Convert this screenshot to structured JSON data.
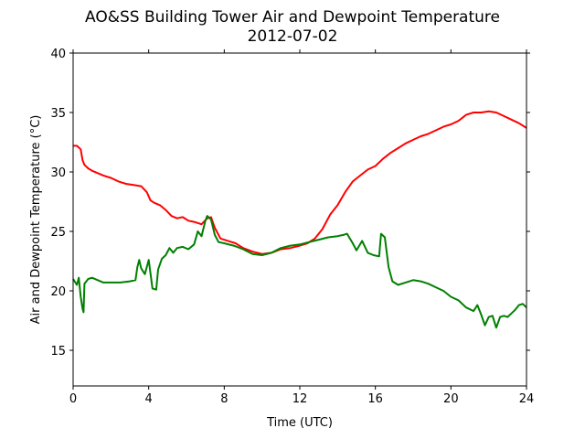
{
  "chart_data": {
    "type": "line",
    "title": "AO&SS Building Tower Air and Dewpoint Temperature",
    "subtitle": "2012-07-02",
    "xlabel": "Time (UTC)",
    "ylabel": "Air and Dewpoint Temperature (°C)",
    "xlim": [
      0,
      24
    ],
    "ylim": [
      12,
      40
    ],
    "xticks": [
      0,
      4,
      8,
      12,
      16,
      20,
      24
    ],
    "yticks": [
      15,
      20,
      25,
      30,
      35,
      40
    ],
    "grid": false,
    "series": [
      {
        "color": "#ff0000",
        "x": [
          0,
          0.2,
          0.4,
          0.5,
          0.6,
          0.8,
          1.0,
          1.3,
          1.6,
          2.0,
          2.4,
          2.8,
          3.2,
          3.6,
          3.9,
          4.1,
          4.3,
          4.6,
          4.9,
          5.2,
          5.5,
          5.8,
          6.1,
          6.4,
          6.8,
          7.1,
          7.3,
          7.5,
          7.8,
          8.2,
          8.6,
          9.0,
          9.5,
          10.0,
          10.5,
          11.0,
          11.5,
          12.0,
          12.4,
          12.8,
          13.2,
          13.6,
          14.0,
          14.4,
          14.8,
          15.2,
          15.6,
          16.0,
          16.4,
          16.8,
          17.2,
          17.6,
          18.0,
          18.4,
          18.8,
          19.2,
          19.6,
          20.0,
          20.4,
          20.8,
          21.2,
          21.6,
          22.0,
          22.4,
          22.8,
          23.2,
          23.6,
          24.0
        ],
        "y": [
          32.2,
          32.2,
          31.9,
          31.0,
          30.6,
          30.3,
          30.1,
          29.9,
          29.7,
          29.5,
          29.2,
          29.0,
          28.9,
          28.8,
          28.3,
          27.6,
          27.4,
          27.2,
          26.8,
          26.3,
          26.1,
          26.2,
          25.9,
          25.8,
          25.6,
          26.1,
          26.2,
          25.3,
          24.4,
          24.2,
          24.0,
          23.6,
          23.3,
          23.1,
          23.2,
          23.5,
          23.6,
          23.8,
          24.0,
          24.4,
          25.2,
          26.4,
          27.2,
          28.3,
          29.2,
          29.7,
          30.2,
          30.5,
          31.1,
          31.6,
          32.0,
          32.4,
          32.7,
          33.0,
          33.2,
          33.5,
          33.8,
          34.0,
          34.3,
          34.8,
          35.0,
          35.0,
          35.1,
          35.0,
          34.7,
          34.4,
          34.1,
          33.7
        ]
      },
      {
        "color": "#008000",
        "x": [
          0,
          0.2,
          0.3,
          0.4,
          0.5,
          0.55,
          0.6,
          0.8,
          1.0,
          1.3,
          1.6,
          2.0,
          2.5,
          3.0,
          3.3,
          3.4,
          3.5,
          3.6,
          3.8,
          4.0,
          4.2,
          4.4,
          4.5,
          4.7,
          4.9,
          5.1,
          5.3,
          5.5,
          5.8,
          6.1,
          6.4,
          6.6,
          6.8,
          7.0,
          7.1,
          7.3,
          7.5,
          7.7,
          8.0,
          8.5,
          9.0,
          9.5,
          10.0,
          10.5,
          11.0,
          11.5,
          12.0,
          12.5,
          13.0,
          13.5,
          14.0,
          14.3,
          14.5,
          14.8,
          15.0,
          15.3,
          15.6,
          15.9,
          16.2,
          16.3,
          16.5,
          16.7,
          16.9,
          17.2,
          17.6,
          18.0,
          18.4,
          18.8,
          19.2,
          19.6,
          20.0,
          20.4,
          20.8,
          21.2,
          21.4,
          21.6,
          21.8,
          22.0,
          22.2,
          22.4,
          22.6,
          22.8,
          23.0,
          23.2,
          23.4,
          23.6,
          23.8,
          24.0
        ],
        "y": [
          21.0,
          20.5,
          21.1,
          19.5,
          18.5,
          18.2,
          20.6,
          21.0,
          21.1,
          20.9,
          20.7,
          20.7,
          20.7,
          20.8,
          20.9,
          22.0,
          22.6,
          21.9,
          21.4,
          22.6,
          20.2,
          20.1,
          21.8,
          22.7,
          23.0,
          23.6,
          23.2,
          23.6,
          23.7,
          23.5,
          23.9,
          25.0,
          24.6,
          25.9,
          26.3,
          26.0,
          24.7,
          24.1,
          24.0,
          23.8,
          23.5,
          23.1,
          23.0,
          23.2,
          23.6,
          23.8,
          23.9,
          24.1,
          24.3,
          24.5,
          24.6,
          24.7,
          24.8,
          24.0,
          23.4,
          24.2,
          23.2,
          23.0,
          22.9,
          24.8,
          24.5,
          22.0,
          20.8,
          20.5,
          20.7,
          20.9,
          20.8,
          20.6,
          20.3,
          20.0,
          19.5,
          19.2,
          18.6,
          18.3,
          18.8,
          18.0,
          17.1,
          17.8,
          17.9,
          16.9,
          17.8,
          17.9,
          17.8,
          18.1,
          18.4,
          18.8,
          18.9,
          18.6
        ]
      }
    ]
  }
}
